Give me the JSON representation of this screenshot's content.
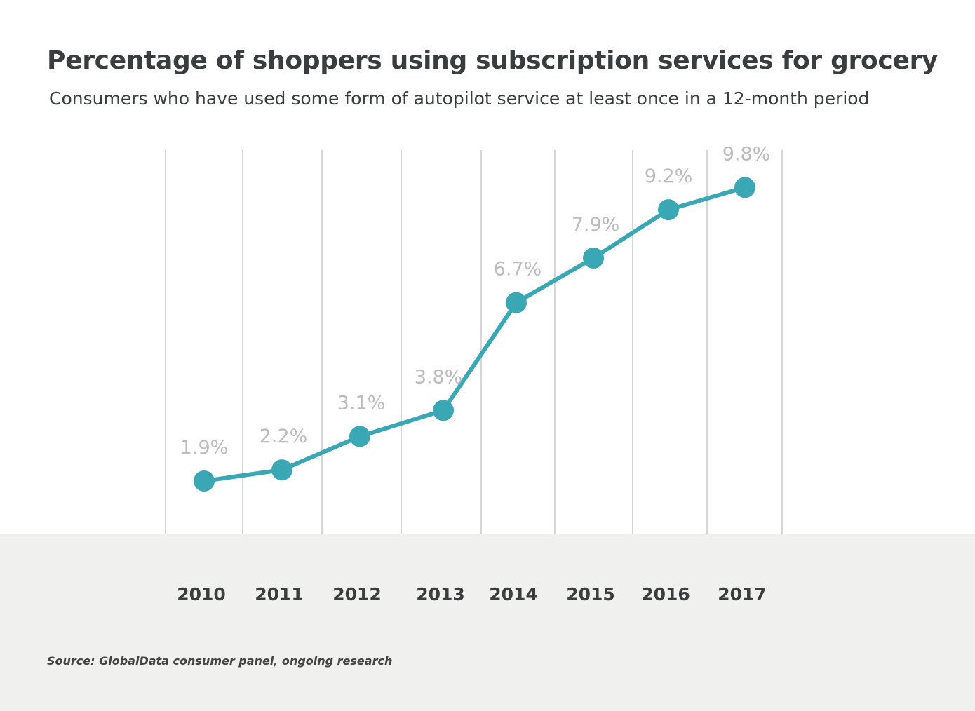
{
  "title": "Percentage of shoppers using subscription services for grocery",
  "subtitle": "Consumers who have used some form of autopilot service at least once in a 12-month period",
  "source": "Source: GlobalData consumer panel, ongoing research",
  "colors": {
    "line": "#3aa8b4",
    "gridline": "#c8c8c8",
    "value_label": "#bcbcbc",
    "band": "#f0f0ef"
  },
  "chart_data": {
    "type": "line",
    "categories": [
      "2010",
      "2011",
      "2012",
      "2013",
      "2014",
      "2015",
      "2016",
      "2017"
    ],
    "values": [
      1.9,
      2.2,
      3.1,
      3.8,
      6.7,
      7.9,
      9.2,
      9.8
    ],
    "value_labels": [
      "1.9%",
      "2.2%",
      "3.1%",
      "3.8%",
      "6.7%",
      "7.9%",
      "9.2%",
      "9.8%"
    ],
    "unit": "%",
    "grid": "vertical",
    "legend": "none"
  }
}
